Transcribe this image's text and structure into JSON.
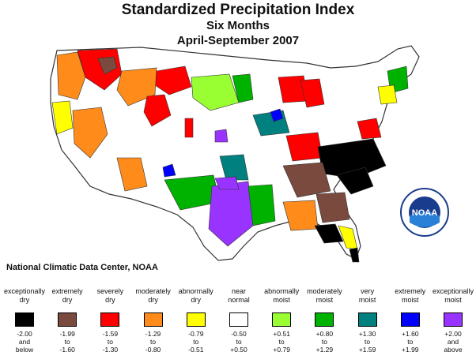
{
  "title": "Standardized Precipitation Index",
  "subtitle1": "Six Months",
  "subtitle2": "April-September 2007",
  "credit": "National Climatic Data Center, NOAA",
  "logo": {
    "icon": "noaa-logo-icon",
    "text": "NOAA"
  },
  "legend": [
    {
      "line1": "exceptionally",
      "line2": "dry",
      "range": [
        "-2.00",
        "and",
        "below"
      ],
      "color": "#000000"
    },
    {
      "line1": "extremely",
      "line2": "dry",
      "range": [
        "-1.99",
        "to",
        "-1.60"
      ],
      "color": "#7b4a3e"
    },
    {
      "line1": "severely",
      "line2": "dry",
      "range": [
        "-1.59",
        "to",
        "-1.30"
      ],
      "color": "#ff0000"
    },
    {
      "line1": "moderately",
      "line2": "dry",
      "range": [
        "-1.29",
        "to",
        "-0.80"
      ],
      "color": "#ff8c1a"
    },
    {
      "line1": "abnormally",
      "line2": "dry",
      "range": [
        "-0.79",
        "to",
        "-0.51"
      ],
      "color": "#ffff00"
    },
    {
      "line1": "near",
      "line2": "normal",
      "range": [
        "-0.50",
        "to",
        "+0.50"
      ],
      "color": "#ffffff"
    },
    {
      "line1": "abnormally",
      "line2": "moist",
      "range": [
        "+0.51",
        "to",
        "+0.79"
      ],
      "color": "#99ff33"
    },
    {
      "line1": "moderately",
      "line2": "moist",
      "range": [
        "+0.80",
        "to",
        "+1.29"
      ],
      "color": "#00b200"
    },
    {
      "line1": "very",
      "line2": "moist",
      "range": [
        "+1.30",
        "to",
        "+1.59"
      ],
      "color": "#00807f"
    },
    {
      "line1": "extremely",
      "line2": "moist",
      "range": [
        "+1.60",
        "to",
        "+1.99"
      ],
      "color": "#0000ff"
    },
    {
      "line1": "exceptionally",
      "line2": "moist",
      "range": [
        "+2.00",
        "and",
        "above"
      ],
      "color": "#9933ff"
    }
  ]
}
